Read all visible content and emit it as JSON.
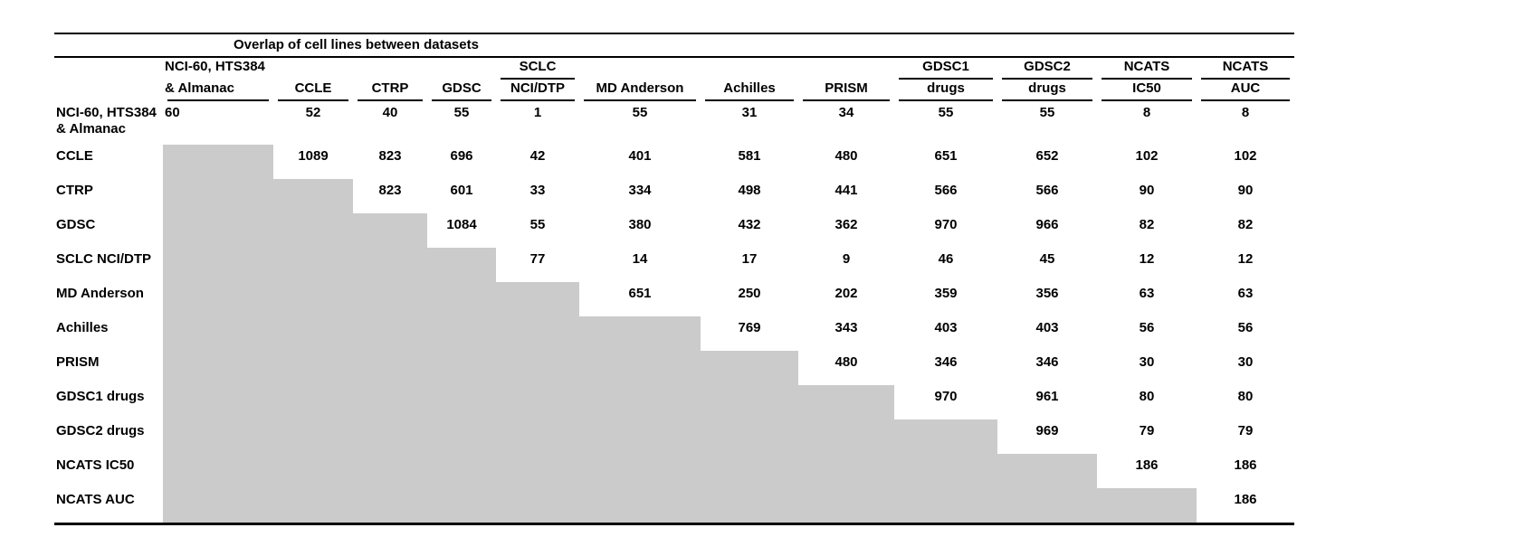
{
  "table": {
    "title": "Overlap of cell lines between datasets",
    "gray_color": "#cbcbcb",
    "columns": [
      {
        "line1": "NCI-60, HTS384",
        "line2": "& Almanac",
        "mid_rule": false
      },
      {
        "line1": "",
        "line2": "CCLE",
        "mid_rule": false
      },
      {
        "line1": "",
        "line2": "CTRP",
        "mid_rule": false
      },
      {
        "line1": "",
        "line2": "GDSC",
        "mid_rule": false
      },
      {
        "line1": "SCLC",
        "line2": "NCI/DTP",
        "mid_rule": true
      },
      {
        "line1": "",
        "line2": "MD Anderson",
        "mid_rule": false
      },
      {
        "line1": "",
        "line2": "Achilles",
        "mid_rule": false
      },
      {
        "line1": "",
        "line2": "PRISM",
        "mid_rule": false
      },
      {
        "line1": "GDSC1",
        "line2": "drugs",
        "mid_rule": true
      },
      {
        "line1": "GDSC2",
        "line2": "drugs",
        "mid_rule": true
      },
      {
        "line1": "NCATS",
        "line2": "IC50",
        "mid_rule": true
      },
      {
        "line1": "NCATS",
        "line2": "AUC",
        "mid_rule": true
      }
    ],
    "rows": [
      {
        "label": "NCI-60, HTS384",
        "label2": "& Almanac",
        "gray_span": 0,
        "values": [
          60,
          52,
          40,
          55,
          1,
          55,
          31,
          34,
          55,
          55,
          8,
          8
        ]
      },
      {
        "label": "CCLE",
        "gray_span": 1,
        "values": [
          1089,
          823,
          696,
          42,
          401,
          581,
          480,
          651,
          652,
          102,
          102
        ]
      },
      {
        "label": "CTRP",
        "gray_span": 2,
        "values": [
          823,
          601,
          33,
          334,
          498,
          441,
          566,
          566,
          90,
          90
        ]
      },
      {
        "label": "GDSC",
        "gray_span": 3,
        "values": [
          1084,
          55,
          380,
          432,
          362,
          970,
          966,
          82,
          82
        ]
      },
      {
        "label": "SCLC NCI/DTP",
        "gray_span": 4,
        "values": [
          77,
          14,
          17,
          9,
          46,
          45,
          12,
          12
        ]
      },
      {
        "label": "MD Anderson",
        "gray_span": 5,
        "values": [
          651,
          250,
          202,
          359,
          356,
          63,
          63
        ]
      },
      {
        "label": "Achilles",
        "gray_span": 6,
        "values": [
          769,
          343,
          403,
          403,
          56,
          56
        ]
      },
      {
        "label": "PRISM",
        "gray_span": 7,
        "values": [
          480,
          346,
          346,
          30,
          30
        ]
      },
      {
        "label": "GDSC1 drugs",
        "gray_span": 8,
        "values": [
          970,
          961,
          80,
          80
        ]
      },
      {
        "label": "GDSC2 drugs",
        "gray_span": 9,
        "values": [
          969,
          79,
          79
        ]
      },
      {
        "label": "NCATS IC50",
        "gray_span": 10,
        "values": [
          186,
          186
        ]
      },
      {
        "label": "NCATS AUC",
        "gray_span": 11,
        "values": [
          186
        ]
      }
    ]
  }
}
